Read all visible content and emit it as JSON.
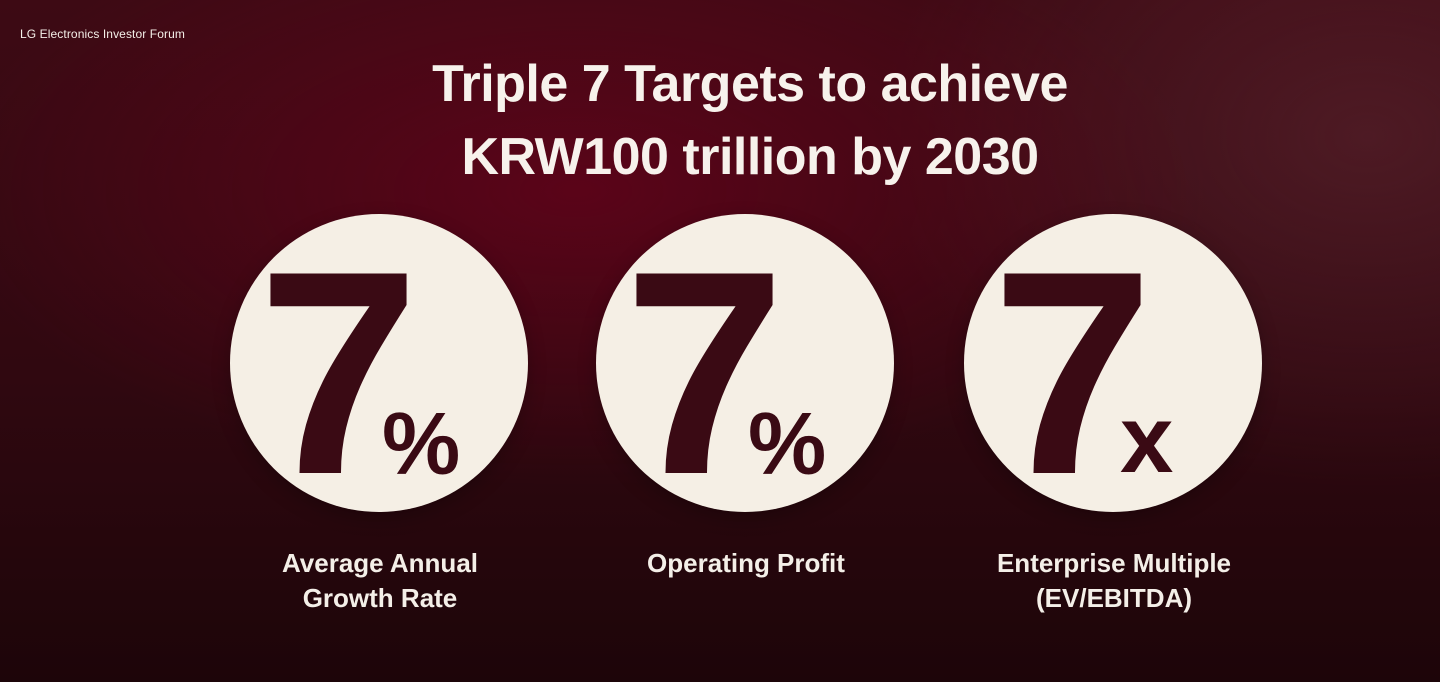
{
  "header": {
    "forum_label": "LG Electronics Investor Forum",
    "title_line1": "Triple 7 Targets to achieve",
    "title_line2": "KRW100 trillion by 2030"
  },
  "targets": [
    {
      "value": "7",
      "suffix": "%",
      "caption_line1": "Average Annual",
      "caption_line2": "Growth Rate"
    },
    {
      "value": "7",
      "suffix": "%",
      "caption_line1": "Operating Profit",
      "caption_line2": ""
    },
    {
      "value": "7",
      "suffix": "x",
      "caption_line1": "Enterprise Multiple",
      "caption_line2": "(EV/EBITDA)"
    }
  ],
  "colors": {
    "background": "#3d0a14",
    "circle": "#f5efe5",
    "digit": "#3a0a14",
    "text": "#f4efe8"
  }
}
